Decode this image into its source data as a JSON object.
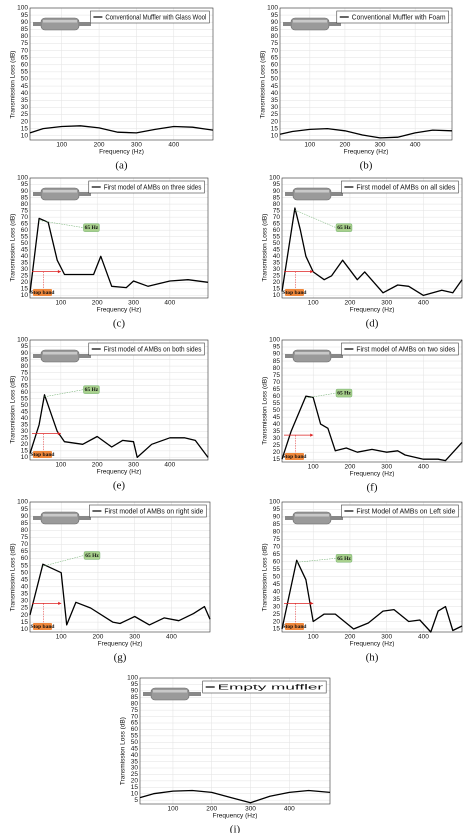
{
  "chart_data": [
    {
      "type": "line",
      "caption": "(a)",
      "x_label": "Frequency (Hz)",
      "y_label": "Transmission Loss (dB)",
      "xlim": [
        15,
        505
      ],
      "ylim": [
        7,
        100
      ],
      "xticks": [
        100,
        200,
        300,
        400
      ],
      "yticks": [
        10,
        15,
        20,
        25,
        30,
        35,
        40,
        45,
        50,
        55,
        60,
        65,
        70,
        75,
        80,
        85,
        90,
        95,
        100
      ],
      "grid": true,
      "legend_corner": "upper right",
      "x": [
        15,
        50,
        100,
        150,
        200,
        250,
        300,
        350,
        400,
        450,
        505
      ],
      "series": [
        {
          "name": "Conventional Muffler with Glass Wool",
          "color": "#000000",
          "values": [
            12,
            15,
            16.5,
            17,
            15.5,
            12.5,
            12,
            14.5,
            16.5,
            16,
            14
          ]
        }
      ]
    },
    {
      "type": "line",
      "caption": "(b)",
      "x_label": "Frequency (Hz)",
      "y_label": "Transmission Loss (dB)",
      "xlim": [
        15,
        505
      ],
      "ylim": [
        7,
        100
      ],
      "xticks": [
        100,
        200,
        300,
        400
      ],
      "yticks": [
        10,
        15,
        20,
        25,
        30,
        35,
        40,
        45,
        50,
        55,
        60,
        65,
        70,
        75,
        80,
        85,
        90,
        95,
        100
      ],
      "grid": true,
      "legend_corner": "upper right",
      "x": [
        15,
        50,
        100,
        150,
        200,
        250,
        300,
        350,
        400,
        450,
        505
      ],
      "series": [
        {
          "name": "Conventional Muffler with Foam",
          "color": "#000000",
          "values": [
            11,
            13,
            14.5,
            15,
            13.5,
            10.5,
            8.5,
            9,
            12,
            14,
            13.5
          ]
        }
      ]
    },
    {
      "type": "line",
      "caption": "(c)",
      "x_label": "Frequency (Hz)",
      "y_label": "Transmission Loss (dB)",
      "xlim": [
        15,
        505
      ],
      "ylim": [
        8,
        100
      ],
      "xticks": [
        100,
        200,
        300,
        400
      ],
      "yticks": [
        10,
        15,
        20,
        25,
        30,
        35,
        40,
        45,
        50,
        55,
        60,
        65,
        70,
        75,
        80,
        85,
        90,
        95,
        100
      ],
      "grid": true,
      "legend_corner": "upper right",
      "peak_label": "65 Hz",
      "band_label": "Stop band",
      "x": [
        15,
        40,
        65,
        90,
        110,
        150,
        190,
        210,
        240,
        280,
        300,
        340,
        400,
        450,
        505
      ],
      "series": [
        {
          "name": "First model of AMBs on three sides",
          "color": "#000000",
          "values": [
            12,
            69,
            66,
            37,
            26,
            26,
            26,
            40,
            17,
            16,
            21,
            17,
            21,
            22,
            20
          ]
        }
      ]
    },
    {
      "type": "line",
      "caption": "(d)",
      "x_label": "Frequency (Hz)",
      "y_label": "Transmission Loss (dB)",
      "xlim": [
        15,
        505
      ],
      "ylim": [
        8,
        100
      ],
      "xticks": [
        100,
        200,
        300,
        400
      ],
      "yticks": [
        10,
        15,
        20,
        25,
        30,
        35,
        40,
        45,
        50,
        55,
        60,
        65,
        70,
        75,
        80,
        85,
        90,
        95,
        100
      ],
      "grid": true,
      "legend_corner": "upper right",
      "peak_label": "65 Hz",
      "band_label": "Stop band",
      "x": [
        15,
        50,
        65,
        80,
        100,
        130,
        150,
        180,
        220,
        240,
        290,
        330,
        360,
        400,
        450,
        480,
        505
      ],
      "series": [
        {
          "name": "First model of AMBs on all sides",
          "color": "#000000",
          "values": [
            13,
            77,
            60,
            40,
            28,
            22,
            25,
            37,
            22,
            28,
            12,
            18,
            17,
            10,
            14,
            12,
            22
          ]
        }
      ]
    },
    {
      "type": "line",
      "caption": "(e)",
      "x_label": "Frequency (Hz)",
      "y_label": "Transmission Loss (dB)",
      "xlim": [
        15,
        505
      ],
      "ylim": [
        8,
        100
      ],
      "xticks": [
        100,
        200,
        300,
        400
      ],
      "yticks": [
        10,
        15,
        20,
        25,
        30,
        35,
        40,
        45,
        50,
        55,
        60,
        65,
        70,
        75,
        80,
        85,
        90,
        95,
        100
      ],
      "grid": true,
      "legend_corner": "upper right",
      "peak_label": "65 Hz",
      "band_label": "Stop band",
      "x": [
        15,
        40,
        55,
        90,
        110,
        160,
        200,
        240,
        270,
        300,
        310,
        350,
        400,
        440,
        470,
        505
      ],
      "series": [
        {
          "name": "First model of AMBs on both sides",
          "color": "#000000",
          "values": [
            13,
            35,
            58,
            30,
            22,
            20,
            26,
            18,
            23,
            22,
            10,
            20,
            25,
            25,
            23,
            10
          ]
        }
      ]
    },
    {
      "type": "line",
      "caption": "(f)",
      "x_label": "Frequency (Hz)",
      "y_label": "Transmission Loss (dB)",
      "xlim": [
        15,
        505
      ],
      "ylim": [
        13,
        100
      ],
      "xticks": [
        100,
        200,
        300,
        400
      ],
      "yticks": [
        15,
        20,
        25,
        30,
        35,
        40,
        45,
        50,
        55,
        60,
        65,
        70,
        75,
        80,
        85,
        90,
        95,
        100
      ],
      "grid": true,
      "legend_corner": "upper right",
      "peak_label": "65 Hz",
      "band_label": "Stop band",
      "x": [
        15,
        40,
        80,
        100,
        120,
        140,
        160,
        190,
        220,
        260,
        300,
        330,
        350,
        400,
        440,
        460,
        505
      ],
      "series": [
        {
          "name": "First model of AMBs on two sides",
          "color": "#000000",
          "values": [
            15,
            35,
            60,
            59,
            40,
            37,
            21,
            23,
            20,
            22,
            20,
            21,
            18,
            15,
            15,
            14,
            27
          ]
        }
      ]
    },
    {
      "type": "line",
      "caption": "(g)",
      "x_label": "Frequency (Hz)",
      "y_label": "Transmission Loss (dB)",
      "xlim": [
        15,
        505
      ],
      "ylim": [
        8,
        100
      ],
      "xticks": [
        100,
        200,
        300,
        400
      ],
      "yticks": [
        10,
        15,
        20,
        25,
        30,
        35,
        40,
        45,
        50,
        55,
        60,
        65,
        70,
        75,
        80,
        85,
        90,
        95,
        100
      ],
      "grid": true,
      "legend_corner": "upper right",
      "peak_label": "65 Hz",
      "band_label": "Stop band",
      "x": [
        15,
        50,
        100,
        115,
        140,
        180,
        240,
        260,
        300,
        340,
        380,
        420,
        460,
        490,
        505
      ],
      "series": [
        {
          "name": "First model of AMBs on right side",
          "color": "#000000",
          "values": [
            20,
            56,
            50,
            13,
            29,
            25,
            15,
            14,
            19,
            13,
            18,
            16,
            21,
            26,
            17
          ]
        }
      ]
    },
    {
      "type": "line",
      "caption": "(h)",
      "x_label": "Frequency (Hz)",
      "y_label": "Transmission Loss (dB)",
      "xlim": [
        15,
        505
      ],
      "ylim": [
        13,
        100
      ],
      "xticks": [
        100,
        200,
        300,
        400
      ],
      "yticks": [
        15,
        20,
        25,
        30,
        35,
        40,
        45,
        50,
        55,
        60,
        65,
        70,
        75,
        80,
        85,
        90,
        95,
        100
      ],
      "grid": true,
      "legend_corner": "upper right",
      "peak_label": "65 Hz",
      "band_label": "Stop band",
      "x": [
        15,
        55,
        80,
        100,
        130,
        160,
        210,
        250,
        290,
        320,
        360,
        390,
        420,
        440,
        460,
        480,
        505
      ],
      "series": [
        {
          "name": "First Model of AMBs on Left side",
          "color": "#000000",
          "values": [
            15,
            61,
            48,
            20,
            25,
            25,
            15,
            19,
            27,
            28,
            20,
            21,
            13,
            27,
            30,
            14,
            17
          ]
        }
      ]
    },
    {
      "type": "line",
      "caption": "(i)",
      "x_label": "Frequency (Hz)",
      "y_label": "Transmission Loss (dB)",
      "xlim": [
        15,
        505
      ],
      "ylim": [
        2,
        100
      ],
      "xticks": [
        100,
        200,
        300,
        400
      ],
      "yticks": [
        5,
        10,
        15,
        20,
        25,
        30,
        35,
        40,
        45,
        50,
        55,
        60,
        65,
        70,
        75,
        80,
        85,
        90,
        95,
        100
      ],
      "grid": true,
      "legend_corner": "upper right",
      "x": [
        15,
        50,
        100,
        150,
        200,
        250,
        300,
        350,
        400,
        450,
        505
      ],
      "series": [
        {
          "name": "Empty muffler",
          "color": "#000000",
          "values": [
            7,
            10,
            12,
            12.5,
            11,
            7,
            3,
            8,
            11,
            12.5,
            11
          ]
        }
      ]
    }
  ]
}
